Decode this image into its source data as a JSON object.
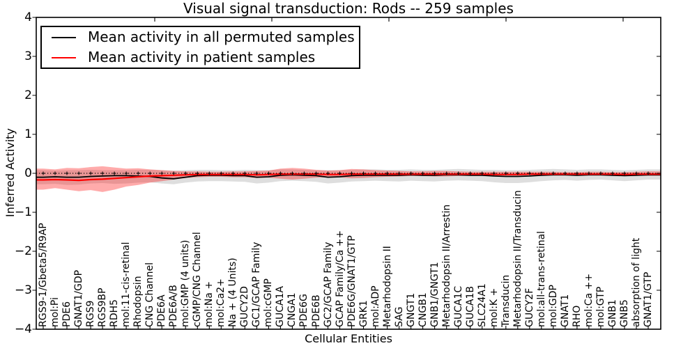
{
  "title": "Visual signal transduction: Rods -- 259 samples",
  "axes": {
    "ylabel": "Inferred Activity",
    "xlabel": "Cellular Entities",
    "y_tick_labels": [
      "4",
      "3",
      "2",
      "1",
      "0",
      "−1",
      "−2",
      "−3",
      "−4"
    ]
  },
  "legend": {
    "items": [
      {
        "label": "Mean activity in all permuted samples",
        "color": "#000000"
      },
      {
        "label": "Mean activity in patient samples",
        "color": "#ff0000"
      }
    ]
  },
  "chart_data": {
    "type": "line",
    "title": "Visual signal transduction: Rods -- 259 samples",
    "xlabel": "Cellular Entities",
    "ylabel": "Inferred Activity",
    "ylim": [
      -4,
      4
    ],
    "y_ticks": [
      4,
      3,
      2,
      1,
      0,
      -1,
      -2,
      -3,
      -4
    ],
    "grid": false,
    "legend_position": "upper left",
    "baseline": {
      "value": 0,
      "linestyle": "dotted",
      "marker": "+",
      "color": "#000000"
    },
    "categories": [
      "RGS9-1/Gbeta5/R9AP",
      "mol:Pi",
      "PDE6",
      "GNAT1/GDP",
      "RGS9",
      "RGS9BP",
      "RDH5",
      "mol:11-cis-retinal",
      "Rhodopsin",
      "CNG Channel",
      "PDE6A",
      "PDE6A/B",
      "mol:GMP (4 units)",
      "cGMP/CNG Channel",
      "mol:Na +",
      "mol:Ca2+",
      "Na + (4 Units)",
      "GUCY2D",
      "GC1/GCAP Family",
      "mol:cGMP",
      "GUCA1A",
      "CNGA1",
      "PDE6G",
      "PDE6B",
      "GC2/GCAP Family",
      "GCAP Family/Ca ++",
      "PDE6G/GNAT1/GTP",
      "GRK1",
      "mol:ADP",
      "Metarhodopsin II",
      "SAG",
      "GNGT1",
      "CNGB1",
      "GNB1/GNGT1",
      "Metarhodopsin II/Arrestin",
      "GUCA1C",
      "GUCA1B",
      "SLC24A1",
      "mol:K +",
      "Transducin",
      "Metarhodopsin II/Transducin",
      "GUCY2F",
      "mol:all-trans-retinal",
      "mol:GDP",
      "GNAT1",
      "RHO",
      "mol:Ca ++",
      "mol:GTP",
      "GNB1",
      "GNB5",
      "absorption of light",
      "GNAT1/GTP"
    ],
    "series": [
      {
        "name": "Mean activity in all permuted samples",
        "color": "#000000",
        "band_color": "#000000",
        "band_opacity": 0.13,
        "values": [
          -0.1,
          -0.09,
          -0.1,
          -0.1,
          -0.08,
          -0.07,
          -0.06,
          -0.06,
          -0.07,
          -0.08,
          -0.12,
          -0.14,
          -0.1,
          -0.06,
          -0.05,
          -0.05,
          -0.06,
          -0.06,
          -0.1,
          -0.09,
          -0.05,
          -0.04,
          -0.05,
          -0.06,
          -0.1,
          -0.09,
          -0.06,
          -0.05,
          -0.05,
          -0.05,
          -0.05,
          -0.04,
          -0.05,
          -0.05,
          -0.04,
          -0.04,
          -0.05,
          -0.05,
          -0.07,
          -0.08,
          -0.08,
          -0.07,
          -0.05,
          -0.04,
          -0.04,
          -0.05,
          -0.04,
          -0.04,
          -0.05,
          -0.06,
          -0.05,
          -0.04
        ],
        "band_upper": [
          0.08,
          0.07,
          0.08,
          0.08,
          0.09,
          0.08,
          0.08,
          0.08,
          0.09,
          0.09,
          0.08,
          0.07,
          0.08,
          0.09,
          0.09,
          0.08,
          0.08,
          0.09,
          0.08,
          0.08,
          0.1,
          0.1,
          0.09,
          0.08,
          0.08,
          0.08,
          0.09,
          0.1,
          0.1,
          0.09,
          0.09,
          0.1,
          0.09,
          0.09,
          0.1,
          0.11,
          0.1,
          0.09,
          0.09,
          0.08,
          0.08,
          0.09,
          0.1,
          0.11,
          0.1,
          0.09,
          0.1,
          0.1,
          0.09,
          0.08,
          0.09,
          0.1
        ],
        "band_lower": [
          -0.28,
          -0.27,
          -0.3,
          -0.29,
          -0.26,
          -0.25,
          -0.27,
          -0.26,
          -0.24,
          -0.23,
          -0.26,
          -0.28,
          -0.24,
          -0.21,
          -0.2,
          -0.2,
          -0.21,
          -0.22,
          -0.26,
          -0.24,
          -0.2,
          -0.19,
          -0.2,
          -0.22,
          -0.26,
          -0.24,
          -0.21,
          -0.2,
          -0.19,
          -0.2,
          -0.21,
          -0.19,
          -0.2,
          -0.21,
          -0.19,
          -0.18,
          -0.19,
          -0.2,
          -0.23,
          -0.25,
          -0.25,
          -0.23,
          -0.2,
          -0.18,
          -0.17,
          -0.19,
          -0.17,
          -0.16,
          -0.18,
          -0.2,
          -0.18,
          -0.16
        ]
      },
      {
        "name": "Mean activity in patient samples",
        "color": "#ff0000",
        "band_color": "#ff0000",
        "band_opacity": 0.33,
        "values": [
          -0.17,
          -0.16,
          -0.17,
          -0.18,
          -0.16,
          -0.15,
          -0.13,
          -0.11,
          -0.09,
          -0.07,
          -0.06,
          -0.05,
          -0.04,
          -0.03,
          -0.03,
          -0.03,
          -0.03,
          -0.03,
          -0.04,
          -0.03,
          -0.02,
          -0.02,
          -0.02,
          -0.02,
          -0.03,
          -0.03,
          -0.02,
          -0.02,
          -0.02,
          -0.02,
          -0.02,
          -0.02,
          -0.02,
          -0.02,
          -0.02,
          -0.02,
          -0.02,
          -0.02,
          -0.03,
          -0.03,
          -0.03,
          -0.02,
          -0.02,
          -0.02,
          -0.02,
          -0.02,
          -0.02,
          -0.02,
          -0.02,
          -0.03,
          -0.02,
          -0.02
        ],
        "band_upper": [
          0.12,
          0.1,
          0.14,
          0.13,
          0.16,
          0.18,
          0.15,
          0.12,
          0.13,
          0.1,
          0.08,
          0.06,
          0.05,
          0.05,
          0.04,
          0.04,
          0.05,
          0.05,
          0.06,
          0.07,
          0.12,
          0.14,
          0.12,
          0.09,
          0.07,
          0.08,
          0.11,
          0.1,
          0.08,
          0.07,
          0.06,
          0.05,
          0.05,
          0.06,
          0.06,
          0.05,
          0.04,
          0.04,
          0.04,
          0.04,
          0.04,
          0.04,
          0.04,
          0.04,
          0.03,
          0.03,
          0.04,
          0.04,
          0.03,
          0.03,
          0.04,
          0.05
        ],
        "band_lower": [
          -0.42,
          -0.38,
          -0.42,
          -0.46,
          -0.43,
          -0.48,
          -0.42,
          -0.34,
          -0.3,
          -0.24,
          -0.2,
          -0.16,
          -0.12,
          -0.1,
          -0.09,
          -0.09,
          -0.1,
          -0.1,
          -0.12,
          -0.11,
          -0.14,
          -0.16,
          -0.14,
          -0.11,
          -0.1,
          -0.1,
          -0.13,
          -0.12,
          -0.1,
          -0.09,
          -0.08,
          -0.07,
          -0.07,
          -0.08,
          -0.08,
          -0.07,
          -0.06,
          -0.06,
          -0.06,
          -0.06,
          -0.06,
          -0.05,
          -0.05,
          -0.05,
          -0.05,
          -0.05,
          -0.05,
          -0.05,
          -0.05,
          -0.05,
          -0.06,
          -0.06
        ]
      }
    ]
  }
}
